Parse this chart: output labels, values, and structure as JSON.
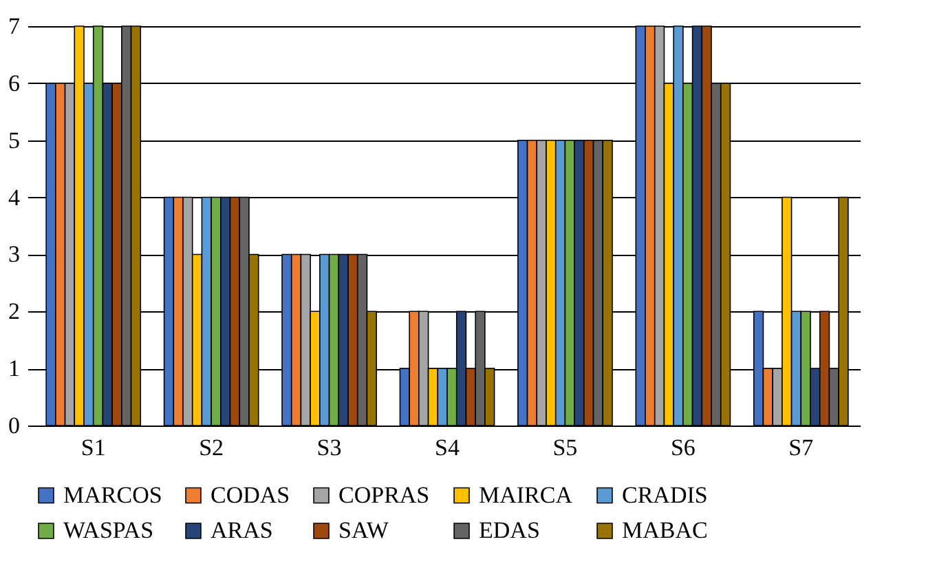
{
  "chart_data": {
    "type": "bar",
    "categories": [
      "S1",
      "S2",
      "S3",
      "S4",
      "S5",
      "S6",
      "S7"
    ],
    "series": [
      {
        "name": "MARCOS",
        "color": "#4472c4",
        "values": [
          6,
          4,
          3,
          1,
          5,
          7,
          2
        ]
      },
      {
        "name": "CODAS",
        "color": "#ed7d31",
        "values": [
          6,
          4,
          3,
          2,
          5,
          7,
          1
        ]
      },
      {
        "name": "COPRAS",
        "color": "#a5a5a5",
        "values": [
          6,
          4,
          3,
          2,
          5,
          7,
          1
        ]
      },
      {
        "name": "MAIRCA",
        "color": "#ffc000",
        "values": [
          7,
          3,
          2,
          1,
          5,
          6,
          4
        ]
      },
      {
        "name": "CRADIS",
        "color": "#5b9bd5",
        "values": [
          6,
          4,
          3,
          1,
          5,
          7,
          2
        ]
      },
      {
        "name": "WASPAS",
        "color": "#70ad47",
        "values": [
          7,
          4,
          3,
          1,
          5,
          6,
          2
        ]
      },
      {
        "name": "ARAS",
        "color": "#264478",
        "values": [
          6,
          4,
          3,
          2,
          5,
          7,
          1
        ]
      },
      {
        "name": "SAW",
        "color": "#9e480e",
        "values": [
          6,
          4,
          3,
          1,
          5,
          7,
          2
        ]
      },
      {
        "name": "EDAS",
        "color": "#636363",
        "values": [
          7,
          4,
          3,
          2,
          5,
          6,
          1
        ]
      },
      {
        "name": "MABAC",
        "color": "#997300",
        "values": [
          7,
          3,
          2,
          1,
          5,
          6,
          4
        ]
      }
    ],
    "ylim": [
      0,
      7
    ],
    "yticks": [
      0,
      1,
      2,
      3,
      4,
      5,
      6,
      7
    ],
    "grid": "y",
    "legend": "bottom"
  }
}
